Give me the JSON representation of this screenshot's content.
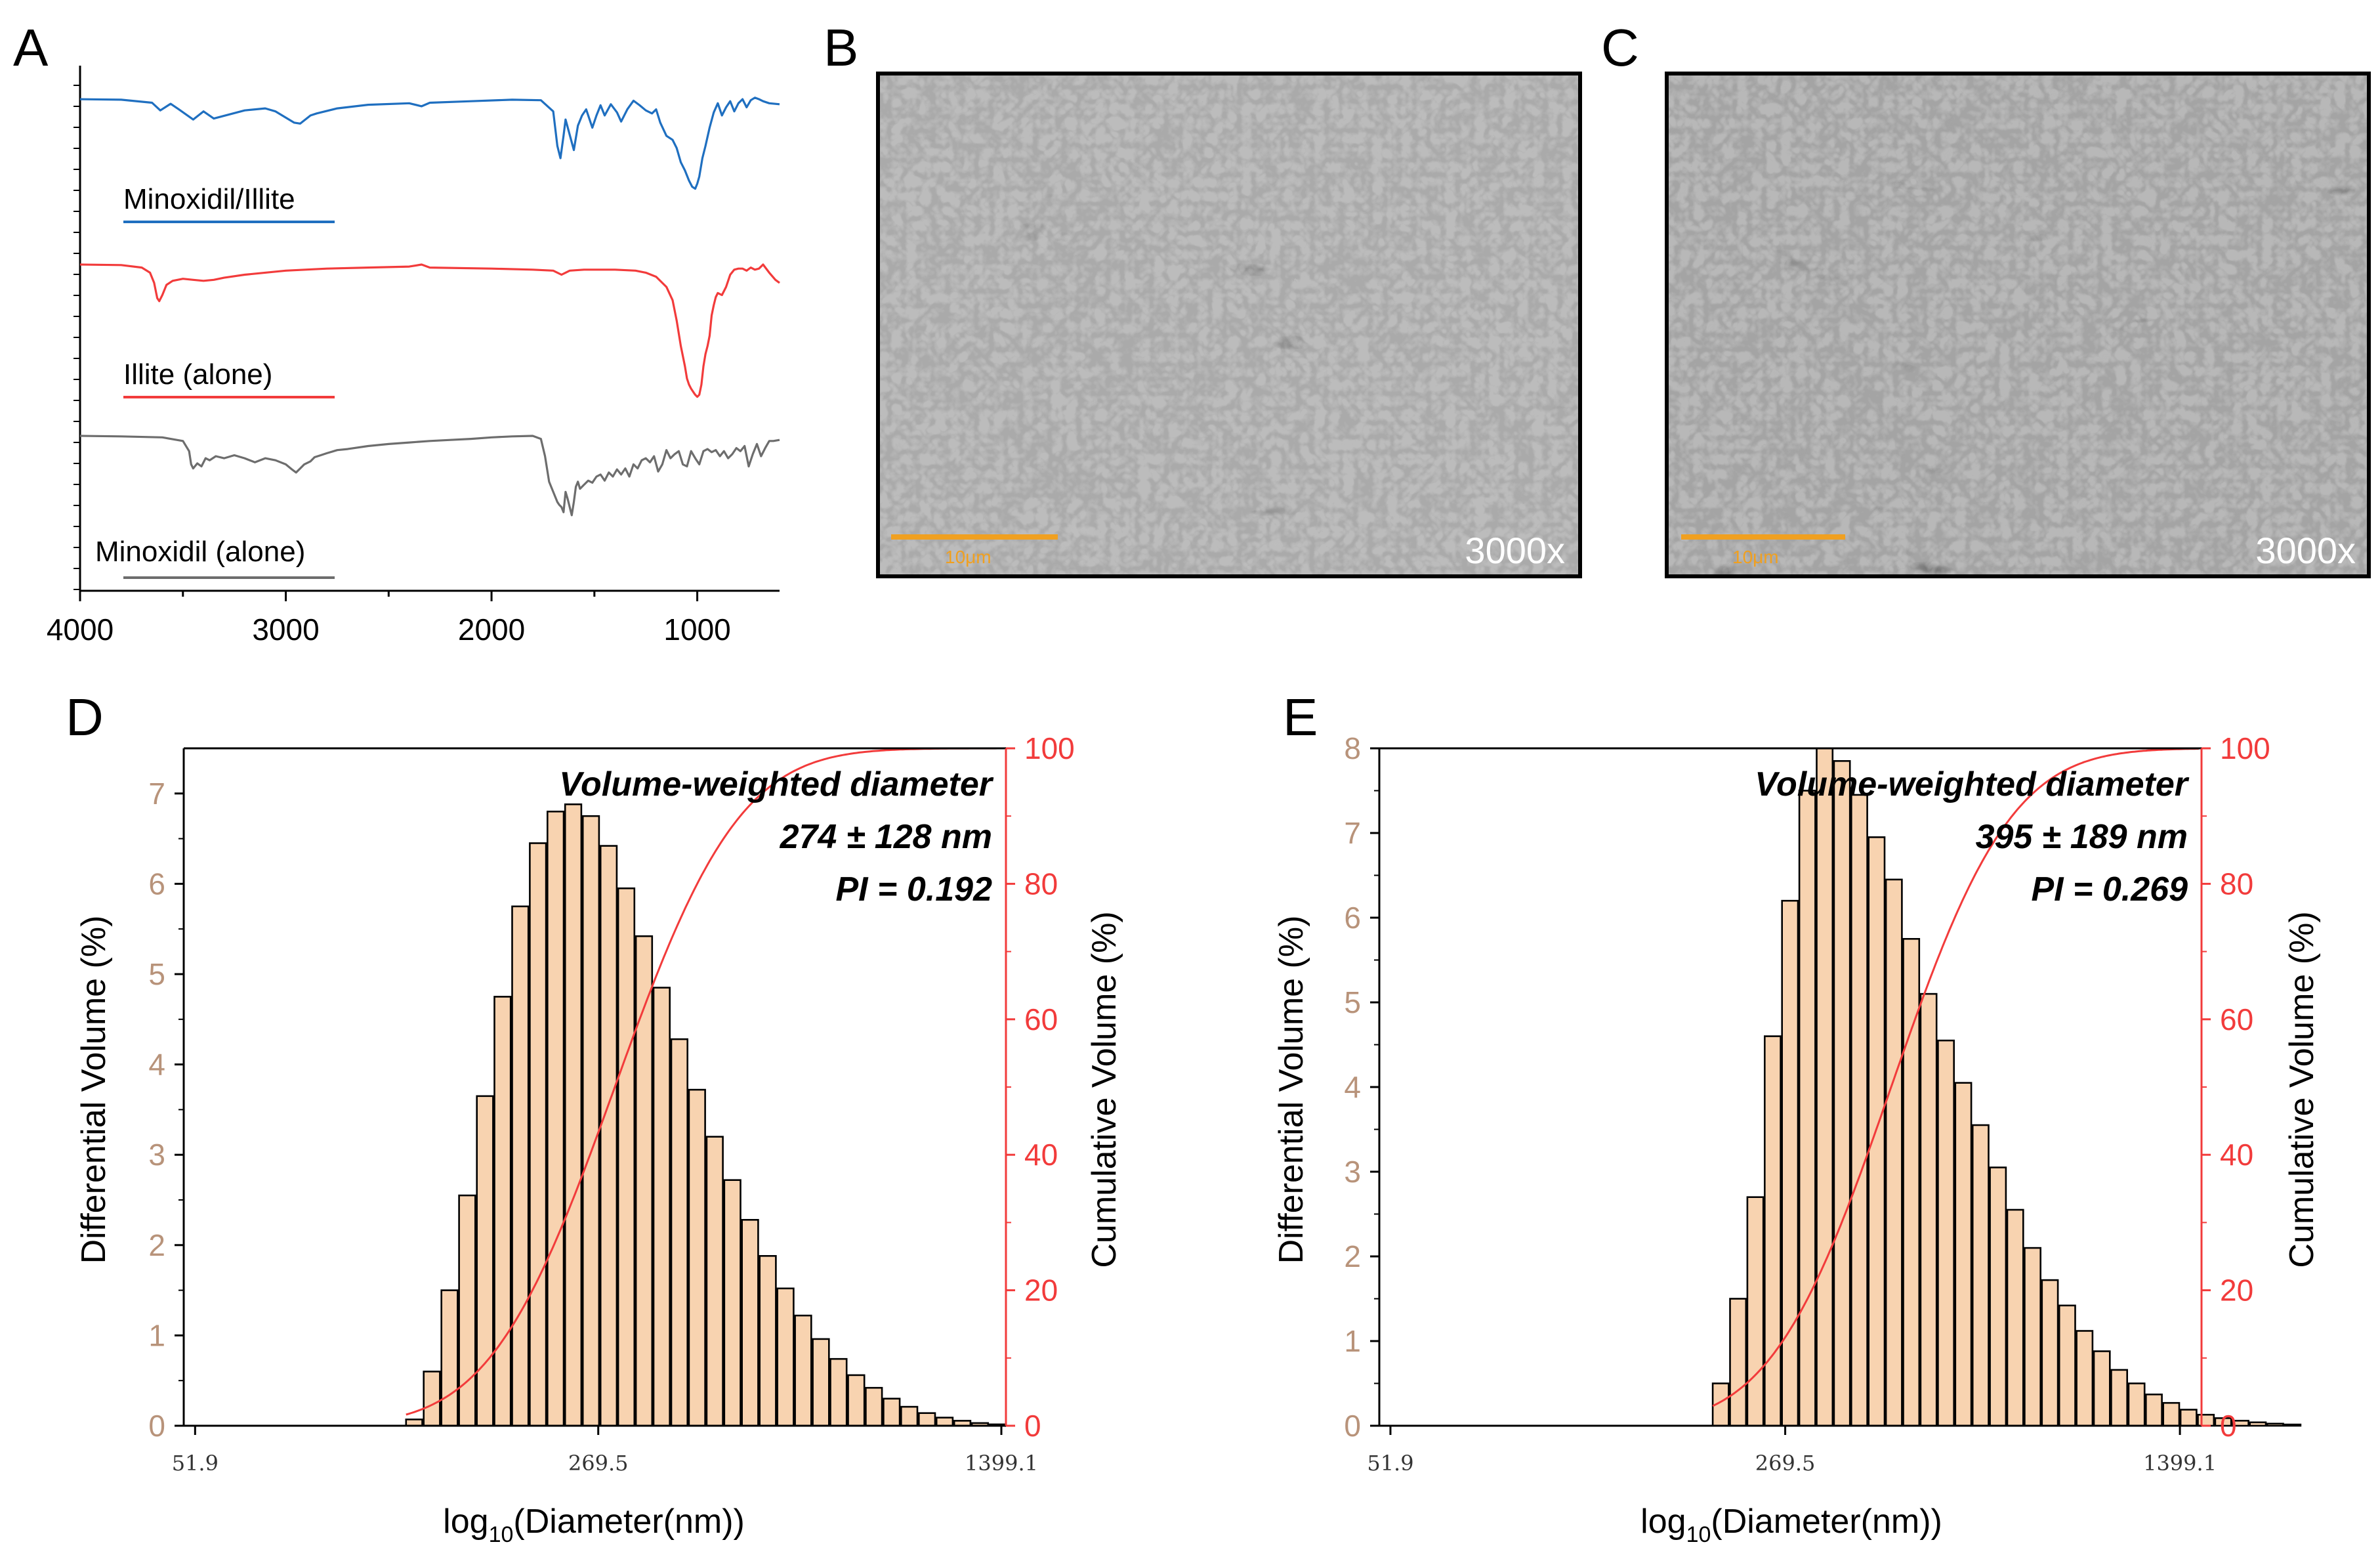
{
  "figure": {
    "panel_labels": [
      "A",
      "B",
      "C",
      "D",
      "E"
    ],
    "colors": {
      "blue": "#1f6fc0",
      "red": "#f23b3b",
      "gray": "#6d6d6d",
      "bar_fill": "#f8d3b0",
      "tick_tan": "#b8937a",
      "scale_bar": "#f0a020",
      "sem_bg": "#6a6a6a"
    }
  },
  "chart_data": [
    {
      "panel": "A",
      "type": "line",
      "title": "",
      "xlabel": "",
      "ylabel": "",
      "xlim": [
        4000,
        600
      ],
      "x_ticks": [
        "4000",
        "3000",
        "2000",
        "1000"
      ],
      "x_tick_values": [
        4000,
        3000,
        2000,
        1000
      ],
      "series": [
        {
          "name": "Minoxidil/Illite",
          "color": "#1f6fc0",
          "offset": 0.0,
          "x": [
            4000,
            3800,
            3650,
            3610,
            3560,
            3520,
            3450,
            3400,
            3350,
            3200,
            3100,
            3050,
            2960,
            2930,
            2880,
            2850,
            2750,
            2600,
            2400,
            2340,
            2300,
            2100,
            1900,
            1760,
            1700,
            1680,
            1665,
            1650,
            1640,
            1620,
            1600,
            1580,
            1560,
            1540,
            1510,
            1490,
            1470,
            1450,
            1420,
            1390,
            1370,
            1340,
            1310,
            1280,
            1250,
            1220,
            1200,
            1180,
            1150,
            1120,
            1100,
            1080,
            1060,
            1040,
            1025,
            1010,
            1000,
            990,
            975,
            960,
            940,
            920,
            900,
            880,
            860,
            840,
            820,
            800,
            780,
            760,
            740,
            720,
            700,
            680,
            650,
            600
          ],
          "y": [
            2.0,
            2.5,
            5.5,
            13.0,
            6.5,
            12.0,
            22.0,
            14.0,
            21.0,
            13.0,
            11.0,
            14.0,
            25.0,
            26.0,
            18.0,
            16.0,
            11.0,
            7.5,
            6.0,
            9.0,
            5.5,
            4.0,
            2.5,
            3.0,
            14.0,
            48.0,
            60.0,
            38.0,
            22.0,
            37.0,
            52.0,
            28.0,
            18.0,
            12.0,
            30.0,
            18.0,
            8.0,
            18.0,
            7.0,
            15.0,
            24.0,
            12.0,
            3.5,
            8.0,
            13.0,
            16.0,
            12.0,
            25.0,
            38.0,
            42.0,
            50.0,
            64.0,
            72.0,
            82.0,
            88.0,
            90.0,
            85.0,
            78.0,
            60.0,
            48.0,
            30.0,
            15.0,
            6.0,
            18.0,
            10.0,
            4.0,
            14.0,
            6.0,
            2.0,
            10.0,
            3.0,
            0.5,
            2.0,
            4.0,
            6.0,
            7.0
          ]
        },
        {
          "name": "Illite (alone)",
          "color": "#f23b3b",
          "offset": 85.0,
          "x": [
            4000,
            3800,
            3700,
            3660,
            3640,
            3625,
            3615,
            3600,
            3580,
            3550,
            3500,
            3450,
            3400,
            3350,
            3300,
            3200,
            3000,
            2800,
            2600,
            2400,
            2340,
            2300,
            2000,
            1800,
            1700,
            1660,
            1640,
            1620,
            1550,
            1500,
            1400,
            1300,
            1250,
            1200,
            1150,
            1120,
            1100,
            1080,
            1060,
            1050,
            1040,
            1030,
            1020,
            1010,
            1000,
            990,
            980,
            970,
            960,
            950,
            940,
            930,
            920,
            910,
            900,
            880,
            860,
            840,
            820,
            800,
            780,
            760,
            740,
            720,
            700,
            680,
            650,
            620,
            600
          ],
          "y": [
            0.0,
            0.5,
            3.0,
            8.0,
            18.0,
            33.0,
            36.0,
            30.0,
            20.0,
            16.0,
            14.0,
            15.0,
            16.0,
            15.0,
            13.0,
            10.0,
            6.0,
            4.0,
            3.0,
            2.0,
            0.0,
            3.0,
            4.0,
            5.0,
            6.0,
            10.0,
            8.0,
            6.0,
            5.0,
            5.0,
            5.0,
            6.0,
            8.0,
            12.0,
            22.0,
            35.0,
            55.0,
            80.0,
            100.0,
            112.0,
            118.0,
            122.0,
            125.0,
            128.0,
            130.0,
            128.0,
            118.0,
            100.0,
            88.0,
            80.0,
            70.0,
            50.0,
            40.0,
            32.0,
            28.0,
            30.0,
            22.0,
            10.0,
            5.0,
            4.0,
            4.0,
            6.0,
            3.0,
            5.0,
            4.0,
            0.0,
            8.0,
            15.0,
            18.0
          ]
        },
        {
          "name": "Minoxidil (alone)",
          "color": "#6d6d6d",
          "offset": 195.0,
          "x": [
            4000,
            3800,
            3600,
            3500,
            3470,
            3460,
            3450,
            3430,
            3410,
            3390,
            3370,
            3340,
            3300,
            3250,
            3200,
            3150,
            3100,
            3050,
            3000,
            2970,
            2950,
            2930,
            2910,
            2880,
            2860,
            2830,
            2800,
            2750,
            2700,
            2600,
            2500,
            2400,
            2300,
            2200,
            2100,
            2000,
            1900,
            1800,
            1760,
            1740,
            1720,
            1700,
            1680,
            1670,
            1660,
            1650,
            1640,
            1630,
            1620,
            1610,
            1600,
            1590,
            1580,
            1570,
            1550,
            1530,
            1510,
            1490,
            1470,
            1450,
            1430,
            1410,
            1390,
            1370,
            1350,
            1330,
            1310,
            1290,
            1270,
            1250,
            1230,
            1210,
            1190,
            1170,
            1150,
            1130,
            1110,
            1090,
            1070,
            1050,
            1030,
            1010,
            990,
            970,
            950,
            930,
            910,
            890,
            870,
            850,
            830,
            810,
            790,
            770,
            750,
            730,
            710,
            690,
            670,
            650,
            630,
            600
          ],
          "y": [
            0.0,
            0.5,
            1.5,
            5.0,
            15.0,
            28.0,
            32.0,
            27.0,
            30.0,
            22.0,
            24.0,
            20.0,
            22.0,
            19.0,
            22.0,
            26.0,
            22.0,
            24.0,
            28.0,
            33.0,
            36.0,
            32.0,
            28.0,
            25.0,
            21.0,
            19.0,
            17.0,
            14.0,
            13.0,
            10.0,
            8.0,
            6.5,
            5.0,
            4.0,
            3.0,
            1.5,
            0.5,
            0.0,
            3.0,
            20.0,
            45.0,
            55.0,
            65.0,
            68.0,
            70.0,
            75.0,
            55.0,
            62.0,
            70.0,
            78.0,
            65.0,
            50.0,
            45.0,
            52.0,
            48.0,
            44.0,
            46.0,
            40.0,
            38.0,
            44.0,
            36.0,
            40.0,
            33.0,
            38.0,
            32.0,
            40.0,
            28.0,
            32.0,
            24.0,
            22.0,
            26.0,
            20.0,
            35.0,
            28.0,
            14.0,
            22.0,
            18.0,
            15.0,
            28.0,
            30.0,
            15.0,
            22.0,
            28.0,
            15.0,
            13.0,
            16.0,
            14.0,
            20.0,
            15.0,
            22.0,
            18.0,
            12.0,
            15.0,
            10.0,
            30.0,
            18.0,
            8.0,
            20.0,
            12.0,
            5.0,
            5.0,
            4.0
          ]
        }
      ],
      "legend": {
        "placement": "left",
        "entries": [
          "Minoxidil/Illite",
          "Illite (alone)",
          "Minoxidil (alone)"
        ]
      },
      "y_ticks_visible_labels": false
    },
    {
      "panel": "D",
      "type": "bar",
      "title": "",
      "xlabel": "log10(Diameter(nm))",
      "xlabel_parts": [
        "log",
        "10",
        "(Diameter(nm))"
      ],
      "ylabel": "Differential Volume (%)",
      "y2label": "Cumulative Volume (%)",
      "ylim": [
        0,
        7.5
      ],
      "y2lim": [
        0,
        100
      ],
      "y_ticks": [
        "0",
        "1",
        "2",
        "3",
        "4",
        "5",
        "6",
        "7"
      ],
      "y_tick_values": [
        0,
        1,
        2,
        3,
        4,
        5,
        6,
        7
      ],
      "y2_ticks": [
        "0",
        "20",
        "40",
        "60",
        "80",
        "100"
      ],
      "y2_tick_values": [
        0,
        20,
        40,
        60,
        80,
        100
      ],
      "x_ticks": [
        "51.9",
        "269.5",
        "1399.1"
      ],
      "x_tick_values": [
        51.9,
        269.5,
        1399.1
      ],
      "xlim_log": [
        1.695,
        3.154
      ],
      "bins": [
        {
          "d": 127.4,
          "v": 0.07
        },
        {
          "d": 136.9,
          "v": 0.6
        },
        {
          "d": 147.2,
          "v": 1.5
        },
        {
          "d": 158.2,
          "v": 2.55
        },
        {
          "d": 170.1,
          "v": 3.65
        },
        {
          "d": 182.8,
          "v": 4.75
        },
        {
          "d": 196.5,
          "v": 5.75
        },
        {
          "d": 211.2,
          "v": 6.45
        },
        {
          "d": 227.0,
          "v": 6.8
        },
        {
          "d": 244.0,
          "v": 6.88
        },
        {
          "d": 262.3,
          "v": 6.75
        },
        {
          "d": 282.0,
          "v": 6.42
        },
        {
          "d": 303.1,
          "v": 5.95
        },
        {
          "d": 325.8,
          "v": 5.42
        },
        {
          "d": 350.2,
          "v": 4.85
        },
        {
          "d": 376.5,
          "v": 4.28
        },
        {
          "d": 404.7,
          "v": 3.72
        },
        {
          "d": 435.0,
          "v": 3.2
        },
        {
          "d": 467.6,
          "v": 2.72
        },
        {
          "d": 502.6,
          "v": 2.28
        },
        {
          "d": 540.3,
          "v": 1.88
        },
        {
          "d": 580.8,
          "v": 1.52
        },
        {
          "d": 624.3,
          "v": 1.22
        },
        {
          "d": 671.1,
          "v": 0.96
        },
        {
          "d": 721.4,
          "v": 0.74
        },
        {
          "d": 775.4,
          "v": 0.56
        },
        {
          "d": 833.5,
          "v": 0.42
        },
        {
          "d": 896.0,
          "v": 0.3
        },
        {
          "d": 963.1,
          "v": 0.21
        },
        {
          "d": 1035.3,
          "v": 0.14
        },
        {
          "d": 1112.9,
          "v": 0.09
        },
        {
          "d": 1196.3,
          "v": 0.055
        },
        {
          "d": 1285.9,
          "v": 0.03
        },
        {
          "d": 1382.3,
          "v": 0.015
        }
      ],
      "annotation": {
        "line1": "Volume-weighted diameter",
        "line2": "274 ± 128 nm",
        "line3": "PI = 0.192"
      }
    },
    {
      "panel": "E",
      "type": "bar",
      "title": "",
      "xlabel": "log10(Diameter(nm))",
      "xlabel_parts": [
        "log",
        "10",
        "(Diameter(nm))"
      ],
      "ylabel": "Differential Volume (%)",
      "y2label": "Cumulative Volume (%)",
      "ylim": [
        0,
        8
      ],
      "y2lim": [
        0,
        100
      ],
      "y_ticks": [
        "0",
        "1",
        "2",
        "3",
        "4",
        "5",
        "6",
        "7",
        "8"
      ],
      "y_tick_values": [
        0,
        1,
        2,
        3,
        4,
        5,
        6,
        7,
        8
      ],
      "y2_ticks": [
        "0",
        "20",
        "40",
        "60",
        "80",
        "100"
      ],
      "y2_tick_values": [
        0,
        20,
        40,
        60,
        80,
        100
      ],
      "x_ticks": [
        "51.9",
        "269.5",
        "1399.1"
      ],
      "x_tick_values": [
        51.9,
        269.5,
        1399.1
      ],
      "xlim_log": [
        1.695,
        3.185
      ],
      "bins": [
        {
          "d": 206.5,
          "v": 0.5
        },
        {
          "d": 222.0,
          "v": 1.5
        },
        {
          "d": 238.6,
          "v": 2.7
        },
        {
          "d": 256.5,
          "v": 4.6
        },
        {
          "d": 275.7,
          "v": 6.2
        },
        {
          "d": 296.4,
          "v": 7.5
        },
        {
          "d": 318.6,
          "v": 8.0
        },
        {
          "d": 342.5,
          "v": 7.85
        },
        {
          "d": 368.2,
          "v": 7.45
        },
        {
          "d": 395.8,
          "v": 6.95
        },
        {
          "d": 425.5,
          "v": 6.45
        },
        {
          "d": 457.4,
          "v": 5.75
        },
        {
          "d": 491.7,
          "v": 5.1
        },
        {
          "d": 528.6,
          "v": 4.55
        },
        {
          "d": 568.2,
          "v": 4.05
        },
        {
          "d": 610.8,
          "v": 3.55
        },
        {
          "d": 656.6,
          "v": 3.05
        },
        {
          "d": 705.8,
          "v": 2.55
        },
        {
          "d": 758.7,
          "v": 2.1
        },
        {
          "d": 815.6,
          "v": 1.72
        },
        {
          "d": 876.8,
          "v": 1.42
        },
        {
          "d": 942.6,
          "v": 1.12
        },
        {
          "d": 1013.3,
          "v": 0.88
        },
        {
          "d": 1089.3,
          "v": 0.66
        },
        {
          "d": 1171.0,
          "v": 0.5
        },
        {
          "d": 1258.8,
          "v": 0.37
        },
        {
          "d": 1353.2,
          "v": 0.27
        },
        {
          "d": 1454.7,
          "v": 0.19
        },
        {
          "d": 1563.8,
          "v": 0.13
        },
        {
          "d": 1681.1,
          "v": 0.09
        },
        {
          "d": 1807.2,
          "v": 0.06
        },
        {
          "d": 1942.7,
          "v": 0.04
        },
        {
          "d": 2088.4,
          "v": 0.025
        },
        {
          "d": 2245.0,
          "v": 0.015
        }
      ],
      "annotation": {
        "line1": "Volume-weighted diameter",
        "line2": "395 ± 189 nm",
        "line3": "PI = 0.269"
      }
    }
  ],
  "sem": [
    {
      "panel": "B",
      "magnification": "3000x",
      "scale_label": "10μm"
    },
    {
      "panel": "C",
      "magnification": "3000x",
      "scale_label": "10μm"
    }
  ]
}
